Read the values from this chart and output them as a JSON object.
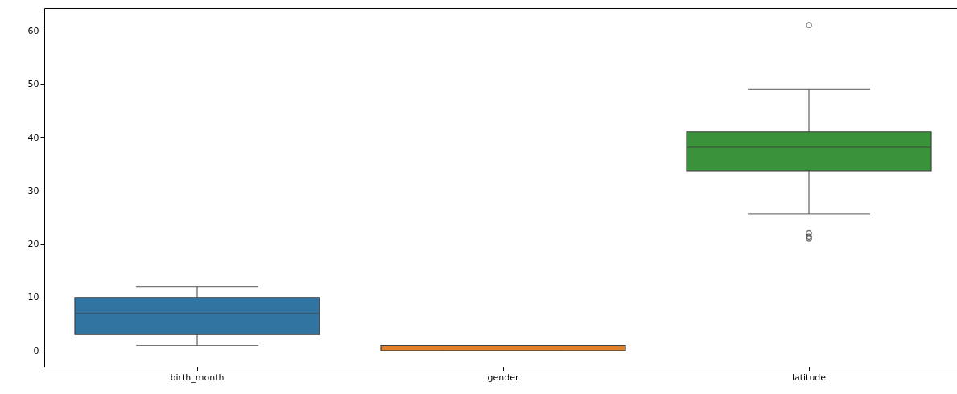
{
  "chart_data": {
    "type": "box",
    "categories": [
      "birth_month",
      "gender",
      "latitude"
    ],
    "series": [
      {
        "colors": [
          "#3274a1",
          "#e1812c",
          "#3a923a"
        ],
        "boxes": [
          {
            "low": 1,
            "q1": 3,
            "median": 7,
            "q3": 10,
            "high": 12
          },
          {
            "low": 0,
            "q1": 0,
            "median": 0,
            "q3": 1,
            "high": 1
          },
          {
            "low": 25.7,
            "q1": 33.7,
            "median": 38.2,
            "q3": 41.1,
            "high": 49.0,
            "outliers": [
              61.1,
              22.1,
              21.4,
              21.0
            ]
          }
        ]
      }
    ],
    "ylim": [
      -3,
      64.3
    ],
    "yticks": [
      0,
      10,
      20,
      30,
      40,
      50,
      60
    ],
    "grid": false
  }
}
